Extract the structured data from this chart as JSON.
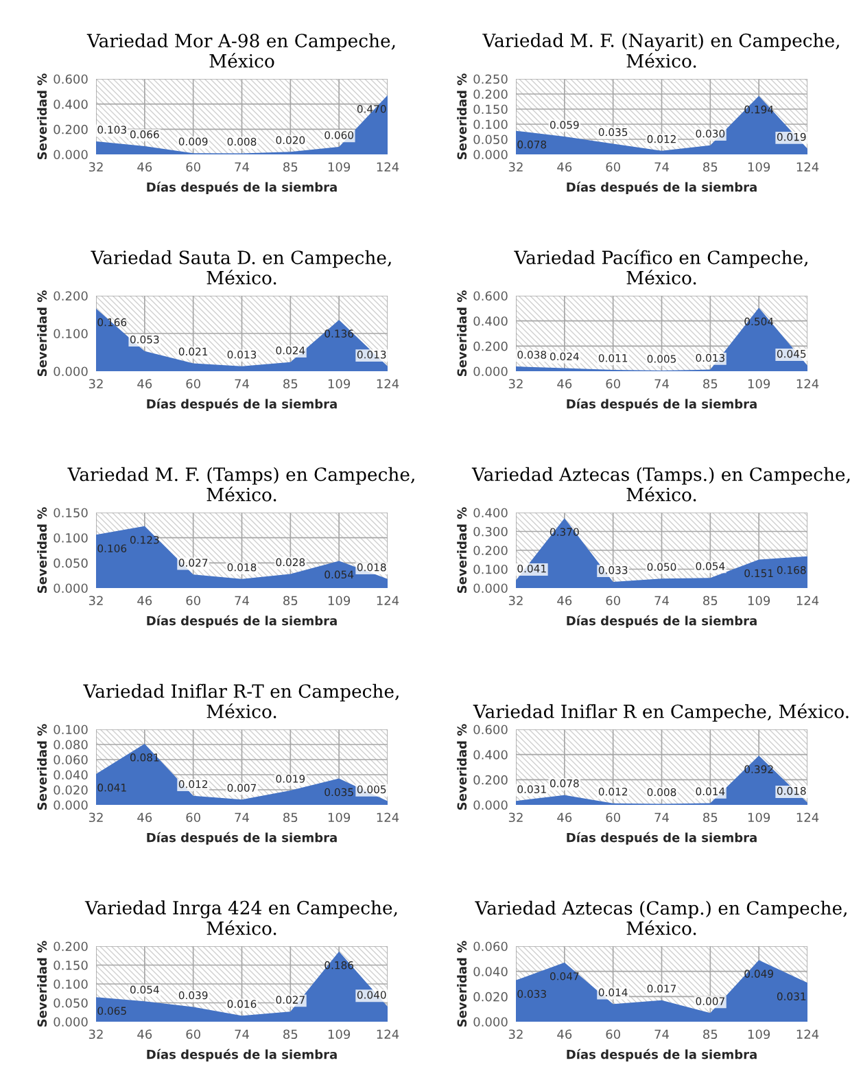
{
  "chart_data": [
    {
      "type": "area",
      "title": "Variedad Mor A-98 en Campeche,\nMéxico",
      "xlabel": "Días después de la siembra",
      "ylabel": "Severidad %",
      "categories": [
        "32",
        "46",
        "60",
        "74",
        "85",
        "109",
        "124"
      ],
      "values": [
        0.103,
        0.066,
        0.009,
        0.008,
        0.02,
        0.06,
        0.47
      ],
      "value_labels": [
        "0.103",
        "0.066",
        "0.009",
        "0.008",
        "0.020",
        "0.060",
        "0.470"
      ],
      "color": "#4472c4",
      "ylim": [
        0,
        0.6
      ],
      "yticks": [
        {
          "value": 0,
          "label": "0.000"
        },
        {
          "value": 0.2,
          "label": "0.200"
        },
        {
          "value": 0.4,
          "label": "0.400"
        },
        {
          "value": 0.6,
          "label": "0.600"
        }
      ],
      "grid": true
    },
    {
      "type": "area",
      "title": "Variedad M. F. (Nayarit) en Campeche,\nMéxico.",
      "xlabel": "Días después de la siembra",
      "ylabel": "Severidad %",
      "categories": [
        "32",
        "46",
        "60",
        "74",
        "85",
        "109",
        "124"
      ],
      "values": [
        0.078,
        0.059,
        0.035,
        0.012,
        0.03,
        0.194,
        0.019
      ],
      "value_labels": [
        "0.078",
        "0.059",
        "0.035",
        "0.012",
        "0.030",
        "0.194",
        "0.019"
      ],
      "color": "#4472c4",
      "ylim": [
        0,
        0.25
      ],
      "yticks": [
        {
          "value": 0,
          "label": "0.000"
        },
        {
          "value": 0.05,
          "label": "0.050"
        },
        {
          "value": 0.1,
          "label": "0.100"
        },
        {
          "value": 0.15,
          "label": "0.150"
        },
        {
          "value": 0.2,
          "label": "0.200"
        },
        {
          "value": 0.25,
          "label": "0.250"
        }
      ],
      "grid": true
    },
    {
      "type": "area",
      "title": "Variedad Sauta D. en Campeche,\nMéxico.",
      "xlabel": "Días después de la siembra",
      "ylabel": "Severidad %",
      "categories": [
        "32",
        "46",
        "60",
        "74",
        "85",
        "109",
        "124"
      ],
      "values": [
        0.166,
        0.053,
        0.021,
        0.013,
        0.024,
        0.136,
        0.013
      ],
      "value_labels": [
        "0.166",
        "0.053",
        "0.021",
        "0.013",
        "0.024",
        "0.136",
        "0.013"
      ],
      "color": "#4472c4",
      "ylim": [
        0,
        0.2
      ],
      "yticks": [
        {
          "value": 0,
          "label": "0.000"
        },
        {
          "value": 0.1,
          "label": "0.100"
        },
        {
          "value": 0.2,
          "label": "0.200"
        }
      ],
      "grid": true
    },
    {
      "type": "area",
      "title": "Variedad Pacífico en Campeche,\nMéxico.",
      "xlabel": "Días después de la siembra",
      "ylabel": "Severidad %",
      "categories": [
        "32",
        "46",
        "60",
        "74",
        "85",
        "109",
        "124"
      ],
      "values": [
        0.038,
        0.024,
        0.011,
        0.005,
        0.013,
        0.504,
        0.045
      ],
      "value_labels": [
        "0.038",
        "0.024",
        "0.011",
        "0.005",
        "0.013",
        "0.504",
        "0.045"
      ],
      "color": "#4472c4",
      "ylim": [
        0,
        0.6
      ],
      "yticks": [
        {
          "value": 0,
          "label": "0.000"
        },
        {
          "value": 0.2,
          "label": "0.200"
        },
        {
          "value": 0.4,
          "label": "0.400"
        },
        {
          "value": 0.6,
          "label": "0.600"
        }
      ],
      "grid": true
    },
    {
      "type": "area",
      "title": "Variedad M. F. (Tamps) en Campeche,\nMéxico.",
      "xlabel": "Días después de la siembra",
      "ylabel": "Severidad %",
      "categories": [
        "32",
        "46",
        "60",
        "74",
        "85",
        "109",
        "124"
      ],
      "values": [
        0.106,
        0.123,
        0.027,
        0.018,
        0.028,
        0.054,
        0.018
      ],
      "value_labels": [
        "0.106",
        "0.123",
        "0.027",
        "0.018",
        "0.028",
        "0.054",
        "0.018"
      ],
      "color": "#4472c4",
      "ylim": [
        0,
        0.15
      ],
      "yticks": [
        {
          "value": 0,
          "label": "0.000"
        },
        {
          "value": 0.05,
          "label": "0.050"
        },
        {
          "value": 0.1,
          "label": "0.100"
        },
        {
          "value": 0.15,
          "label": "0.150"
        }
      ],
      "grid": true
    },
    {
      "type": "area",
      "title": "Variedad Aztecas (Tamps.) en Campeche,\nMéxico.",
      "xlabel": "Días después de la siembra",
      "ylabel": "Severidad %",
      "categories": [
        "32",
        "46",
        "60",
        "74",
        "85",
        "109",
        "124"
      ],
      "values": [
        0.041,
        0.37,
        0.033,
        0.05,
        0.054,
        0.151,
        0.168
      ],
      "value_labels": [
        "0.041",
        "0.370",
        "0.033",
        "0.050",
        "0.054",
        "0.151",
        "0.168"
      ],
      "color": "#4472c4",
      "ylim": [
        0,
        0.4
      ],
      "yticks": [
        {
          "value": 0,
          "label": "0.000"
        },
        {
          "value": 0.1,
          "label": "0.100"
        },
        {
          "value": 0.2,
          "label": "0.200"
        },
        {
          "value": 0.3,
          "label": "0.300"
        },
        {
          "value": 0.4,
          "label": "0.400"
        }
      ],
      "grid": true
    },
    {
      "type": "area",
      "title": "Variedad Iniflar R-T en Campeche,\nMéxico.",
      "xlabel": "Días después de la siembra",
      "ylabel": "Severidad %",
      "categories": [
        "32",
        "46",
        "60",
        "74",
        "85",
        "109",
        "124"
      ],
      "values": [
        0.041,
        0.081,
        0.012,
        0.007,
        0.019,
        0.035,
        0.005
      ],
      "value_labels": [
        "0.041",
        "0.081",
        "0.012",
        "0.007",
        "0.019",
        "0.035",
        "0.005"
      ],
      "color": "#4472c4",
      "ylim": [
        0,
        0.1
      ],
      "yticks": [
        {
          "value": 0,
          "label": "0.000"
        },
        {
          "value": 0.02,
          "label": "0.020"
        },
        {
          "value": 0.04,
          "label": "0.040"
        },
        {
          "value": 0.06,
          "label": "0.060"
        },
        {
          "value": 0.08,
          "label": "0.080"
        },
        {
          "value": 0.1,
          "label": "0.100"
        }
      ],
      "grid": true
    },
    {
      "type": "area",
      "title": "Variedad Iniflar R en Campeche, México.",
      "xlabel": "Días después de la siembra",
      "ylabel": "Severidad %",
      "categories": [
        "32",
        "46",
        "60",
        "74",
        "85",
        "109",
        "124"
      ],
      "values": [
        0.031,
        0.078,
        0.012,
        0.008,
        0.014,
        0.392,
        0.018
      ],
      "value_labels": [
        "0.031",
        "0.078",
        "0.012",
        "0.008",
        "0.014",
        "0.392",
        "0.018"
      ],
      "color": "#4472c4",
      "ylim": [
        0,
        0.6
      ],
      "yticks": [
        {
          "value": 0,
          "label": "0.000"
        },
        {
          "value": 0.2,
          "label": "0.200"
        },
        {
          "value": 0.4,
          "label": "0.400"
        },
        {
          "value": 0.6,
          "label": "0.600"
        }
      ],
      "grid": true
    },
    {
      "type": "area",
      "title": "Variedad Inrga 424 en Campeche,\nMéxico.",
      "xlabel": "Días después de la siembra",
      "ylabel": "Severidad %",
      "categories": [
        "32",
        "46",
        "60",
        "74",
        "85",
        "109",
        "124"
      ],
      "values": [
        0.065,
        0.054,
        0.039,
        0.016,
        0.027,
        0.186,
        0.04
      ],
      "value_labels": [
        "0.065",
        "0.054",
        "0.039",
        "0.016",
        "0.027",
        "0.186",
        "0.040"
      ],
      "color": "#4472c4",
      "ylim": [
        0,
        0.2
      ],
      "yticks": [
        {
          "value": 0,
          "label": "0.000"
        },
        {
          "value": 0.05,
          "label": "0.050"
        },
        {
          "value": 0.1,
          "label": "0.100"
        },
        {
          "value": 0.15,
          "label": "0.150"
        },
        {
          "value": 0.2,
          "label": "0.200"
        }
      ],
      "grid": true
    },
    {
      "type": "area",
      "title": "Variedad Aztecas (Camp.) en Campeche,\nMéxico.",
      "xlabel": "Días después de la siembra",
      "ylabel": "Severidad %",
      "categories": [
        "32",
        "46",
        "60",
        "74",
        "85",
        "109",
        "124"
      ],
      "values": [
        0.033,
        0.047,
        0.014,
        0.017,
        0.007,
        0.049,
        0.031
      ],
      "value_labels": [
        "0.033",
        "0.047",
        "0.014",
        "0.017",
        "0.007",
        "0.049",
        "0.031"
      ],
      "color": "#4472c4",
      "ylim": [
        0,
        0.06
      ],
      "yticks": [
        {
          "value": 0,
          "label": "0.000"
        },
        {
          "value": 0.02,
          "label": "0.020"
        },
        {
          "value": 0.04,
          "label": "0.040"
        },
        {
          "value": 0.06,
          "label": "0.060"
        }
      ],
      "grid": true
    }
  ]
}
